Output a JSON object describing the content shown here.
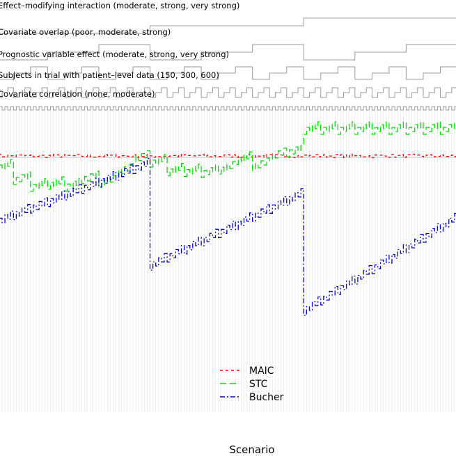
{
  "chart_data": {
    "type": "line",
    "xlabel": "Scenario",
    "ylabel": "",
    "n_scenarios": 162,
    "grid": "vertical lines at every scenario, horizontal reference line at 0",
    "legend_placement": "bottom-center",
    "nested_loop": [
      {
        "label": "Effect–modifying interaction (moderate, strong, very strong)",
        "levels": 3,
        "block": 54
      },
      {
        "label": "Covariate overlap (poor, moderate, strong)",
        "levels": 3,
        "block": 18
      },
      {
        "label": "Prognostic variable effect (moderate, strong, very strong)",
        "levels": 3,
        "block": 6
      },
      {
        "label": "Subjects in trial with patient–level data (150, 300, 600)",
        "levels": 3,
        "block": 2
      },
      {
        "label": "Covariate correlation (none, moderate)",
        "levels": 2,
        "block": 1
      }
    ],
    "series": [
      {
        "name": "MAIC",
        "color": "#ff0000",
        "dash": "4,4",
        "values": []
      },
      {
        "name": "STC",
        "color": "#00dd00",
        "dash": "9,5",
        "values": []
      },
      {
        "name": "Bucher",
        "color": "#0000cc",
        "dash": "7,3,2,3",
        "values": []
      }
    ]
  },
  "legend": {
    "items": [
      {
        "label": "MAIC",
        "color": "#ff0000",
        "dash": "4,4"
      },
      {
        "label": "STC",
        "color": "#00dd00",
        "dash": "9,5"
      },
      {
        "label": "Bucher",
        "color": "#0000cc",
        "dash": "7,3,2,3"
      }
    ]
  }
}
